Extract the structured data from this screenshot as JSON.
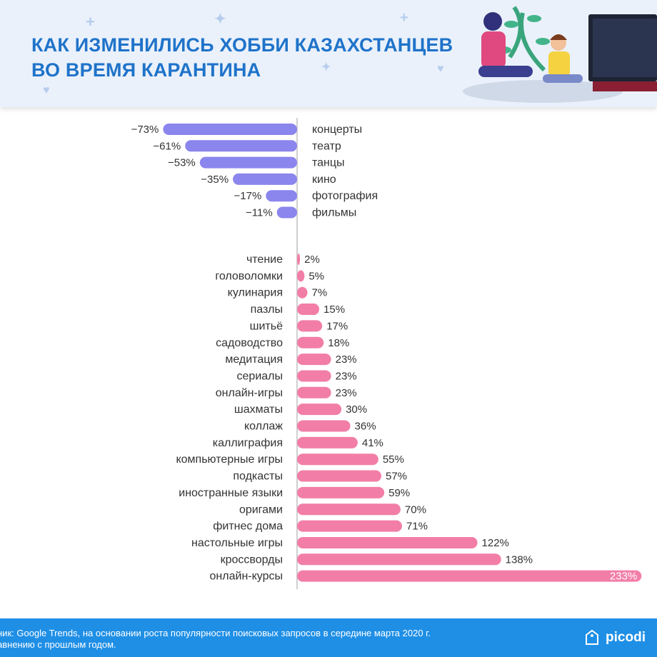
{
  "header": {
    "title_line1": "КАК ИЗМЕНИЛИСЬ ХОББИ КАЗАХСТАНЦЕВ",
    "title_line2": "ВО ВРЕМЯ КАРАНТИНА"
  },
  "chart_data": {
    "type": "bar",
    "orientation": "horizontal",
    "title": "КАК ИЗМЕНИЛИСЬ ХОББИ КАЗАХСТАНЦЕВ ВО ВРЕМЯ КАРАНТИНА",
    "value_unit": "%",
    "colors": {
      "negative": "#8b85ee",
      "positive": "#f27ea7",
      "axis": "#cfcfcf"
    },
    "negative": {
      "categories": [
        "концерты",
        "театр",
        "танцы",
        "кино",
        "фотография",
        "фильмы"
      ],
      "values": [
        -73,
        -61,
        -53,
        -35,
        -17,
        -11
      ],
      "labels": [
        "−73%",
        "−61%",
        "−53%",
        "−35%",
        "−17%",
        "−11%"
      ]
    },
    "positive": {
      "categories": [
        "чтение",
        "головоломки",
        "кулинария",
        "пазлы",
        "шитьё",
        "садоводство",
        "медитация",
        "сериалы",
        "онлайн-игры",
        "шахматы",
        "коллаж",
        "каллиграфия",
        "компьютерные игры",
        "подкасты",
        "иностранные языки",
        "оригами",
        "фитнес дома",
        "настольные игры",
        "кроссворды",
        "онлайн-курсы"
      ],
      "values": [
        2,
        5,
        7,
        15,
        17,
        18,
        23,
        23,
        23,
        30,
        36,
        41,
        55,
        57,
        59,
        70,
        71,
        122,
        138,
        233
      ],
      "labels": [
        "2%",
        "5%",
        "7%",
        "15%",
        "17%",
        "18%",
        "23%",
        "23%",
        "23%",
        "30%",
        "36%",
        "41%",
        "55%",
        "57%",
        "59%",
        "70%",
        "71%",
        "122%",
        "138%",
        "233%"
      ]
    }
  },
  "footer": {
    "source_line1": "ник: Google Trends, на основании роста популярности поисковых запросов в середине марта 2020 г.",
    "source_line2": "авнению с прошлым годом.",
    "logo_text": "picodi"
  }
}
